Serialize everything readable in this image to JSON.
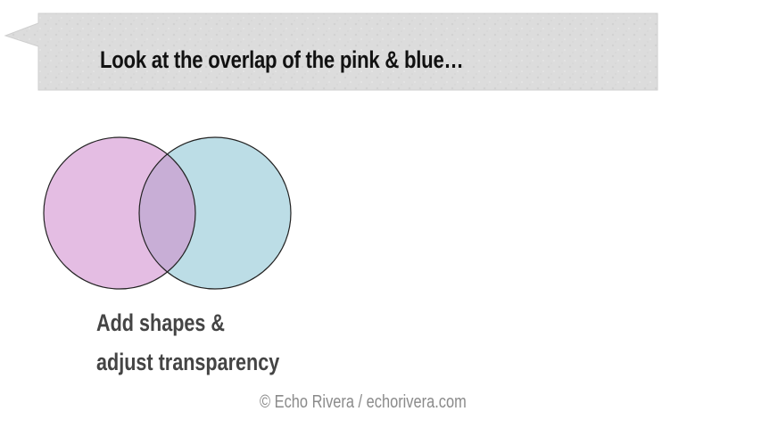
{
  "callout": {
    "text": "Look at the overlap of the pink & blue…",
    "fill_color": "#dcdcdc",
    "text_color": "#111111"
  },
  "venn": {
    "left_circle_color": "#e4bde3",
    "right_circle_color": "#bcdde6",
    "overlap_color": "#c8aed6",
    "outline_color": "#222222"
  },
  "caption": {
    "line1": "Add shapes &",
    "line2": "adjust transparency",
    "color": "#444444"
  },
  "credit": {
    "text": "© Echo Rivera / echorivera.com",
    "color": "#8a8a8a"
  }
}
